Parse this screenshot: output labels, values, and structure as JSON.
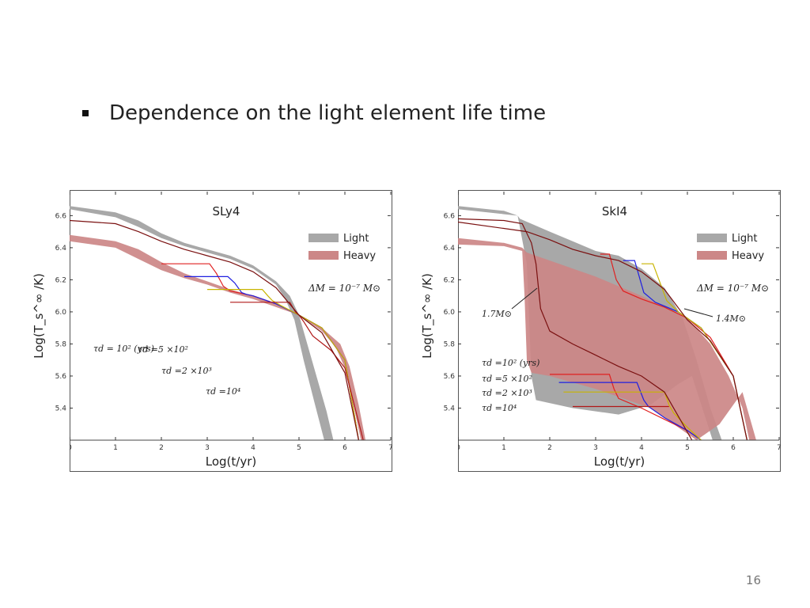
{
  "slide": {
    "heading": "Dependence on the light element life time",
    "page_number": "16"
  },
  "chart_data": [
    {
      "type": "line",
      "title": "SLy4",
      "xlabel": "Log(t/yr)",
      "ylabel": "Log(T_s^∞ /K)",
      "xlim": [
        0,
        7
      ],
      "ylim": [
        5.2,
        6.75
      ],
      "xticks": [
        "0",
        "1",
        "2",
        "3",
        "4",
        "5",
        "6",
        "7"
      ],
      "yticks": [
        "5.4",
        "5.6",
        "5.8",
        "6.0",
        "6.2",
        "6.4",
        "6.6"
      ],
      "legend": {
        "position": "top-right",
        "entries": [
          {
            "label": "Light",
            "color": "#a8a8a8"
          },
          {
            "label": "Heavy",
            "color": "#cc8787"
          }
        ]
      },
      "annotation": "ΔM = 10⁻⁷ M⊙",
      "bands": [
        {
          "name": "Light",
          "color": "#a8a8a8",
          "upper": [
            [
              0,
              6.66
            ],
            [
              1,
              6.62
            ],
            [
              1.5,
              6.57
            ],
            [
              2,
              6.49
            ],
            [
              2.5,
              6.43
            ],
            [
              3,
              6.39
            ],
            [
              3.5,
              6.35
            ],
            [
              4,
              6.29
            ],
            [
              4.5,
              6.19
            ],
            [
              4.8,
              6.1
            ],
            [
              5,
              5.98
            ],
            [
              5.3,
              5.68
            ],
            [
              5.6,
              5.38
            ],
            [
              5.75,
              5.2
            ]
          ],
          "lower": [
            [
              5.55,
              5.2
            ],
            [
              5.35,
              5.42
            ],
            [
              5.1,
              5.7
            ],
            [
              4.9,
              5.95
            ],
            [
              4.7,
              6.08
            ],
            [
              4.5,
              6.17
            ],
            [
              4,
              6.27
            ],
            [
              3.5,
              6.33
            ],
            [
              3,
              6.37
            ],
            [
              2.5,
              6.41
            ],
            [
              2,
              6.46
            ],
            [
              1.5,
              6.53
            ],
            [
              1,
              6.59
            ],
            [
              0,
              6.64
            ]
          ]
        },
        {
          "name": "Heavy",
          "color": "#cc8787",
          "upper": [
            [
              0,
              6.48
            ],
            [
              1,
              6.44
            ],
            [
              1.5,
              6.39
            ],
            [
              2,
              6.31
            ],
            [
              2.5,
              6.24
            ],
            [
              3,
              6.19
            ],
            [
              3.5,
              6.14
            ],
            [
              4,
              6.1
            ],
            [
              4.5,
              6.05
            ],
            [
              5,
              5.98
            ],
            [
              5.5,
              5.88
            ],
            [
              5.8,
              5.78
            ],
            [
              6,
              5.65
            ],
            [
              6.2,
              5.4
            ],
            [
              6.35,
              5.2
            ]
          ],
          "lower": [
            [
              6.45,
              5.2
            ],
            [
              6.3,
              5.42
            ],
            [
              6.1,
              5.66
            ],
            [
              5.9,
              5.8
            ],
            [
              5.5,
              5.9
            ],
            [
              5,
              5.98
            ],
            [
              4.5,
              6.03
            ],
            [
              4,
              6.08
            ],
            [
              3.5,
              6.12
            ],
            [
              3,
              6.17
            ],
            [
              2.5,
              6.21
            ],
            [
              2,
              6.26
            ],
            [
              1.5,
              6.33
            ],
            [
              1,
              6.4
            ],
            [
              0,
              6.44
            ]
          ]
        }
      ],
      "series": [
        {
          "label": "τd = 10² (yrs)",
          "color": "#e02020",
          "points": [
            [
              2,
              6.3
            ],
            [
              3.05,
              6.3
            ],
            [
              3.2,
              6.24
            ],
            [
              3.35,
              6.16
            ],
            [
              3.5,
              6.13
            ],
            [
              4,
              6.1
            ],
            [
              4.5,
              6.05
            ],
            [
              5,
              5.98
            ],
            [
              5.5,
              5.9
            ],
            [
              6,
              5.7
            ],
            [
              6.3,
              5.2
            ]
          ]
        },
        {
          "label": "τd =5 ×10²",
          "color": "#2020e0",
          "points": [
            [
              2.5,
              6.22
            ],
            [
              3.45,
              6.22
            ],
            [
              3.6,
              6.18
            ],
            [
              3.75,
              6.12
            ],
            [
              3.85,
              6.11
            ],
            [
              4,
              6.1
            ],
            [
              4.5,
              6.05
            ],
            [
              5,
              5.98
            ],
            [
              5.5,
              5.9
            ],
            [
              6,
              5.7
            ],
            [
              6.3,
              5.2
            ]
          ]
        },
        {
          "label": "τd =2 ×10³",
          "color": "#c8b400",
          "points": [
            [
              3,
              6.14
            ],
            [
              4.2,
              6.14
            ],
            [
              4.32,
              6.1
            ],
            [
              4.42,
              6.07
            ],
            [
              4.6,
              6.04
            ],
            [
              5,
              5.98
            ],
            [
              5.5,
              5.9
            ],
            [
              6,
              5.7
            ],
            [
              6.3,
              5.2
            ]
          ]
        },
        {
          "label": "τd =10⁴",
          "color": "#b01818",
          "points": [
            [
              3.5,
              6.06
            ],
            [
              4.8,
              6.06
            ],
            [
              4.92,
              6.0
            ],
            [
              5.0,
              5.98
            ],
            [
              5.1,
              5.94
            ],
            [
              5.3,
              5.85
            ],
            [
              5.7,
              5.76
            ],
            [
              6.0,
              5.65
            ],
            [
              6.4,
              5.2
            ]
          ]
        },
        {
          "label": "",
          "color": "#7a1010",
          "points": [
            [
              0,
              6.57
            ],
            [
              1,
              6.55
            ],
            [
              1.5,
              6.5
            ],
            [
              2,
              6.44
            ],
            [
              2.5,
              6.39
            ],
            [
              3,
              6.35
            ],
            [
              3.5,
              6.31
            ],
            [
              4,
              6.25
            ],
            [
              4.5,
              6.15
            ],
            [
              5,
              5.98
            ],
            [
              5.5,
              5.87
            ],
            [
              6,
              5.62
            ],
            [
              6.3,
              5.2
            ]
          ]
        }
      ]
    },
    {
      "type": "line",
      "title": "SkI4",
      "xlabel": "Log(t/yr)",
      "ylabel": "Log(T_s^∞ /K)",
      "xlim": [
        0,
        7
      ],
      "ylim": [
        5.2,
        6.75
      ],
      "xticks": [
        "0",
        "1",
        "2",
        "3",
        "4",
        "5",
        "6",
        "7"
      ],
      "yticks": [
        "5.4",
        "5.6",
        "5.8",
        "6.0",
        "6.2",
        "6.4",
        "6.6"
      ],
      "legend": {
        "position": "top-right",
        "entries": [
          {
            "label": "Light",
            "color": "#a8a8a8"
          },
          {
            "label": "Heavy",
            "color": "#cc8787"
          }
        ]
      },
      "annotation": "ΔM = 10⁻⁷ M⊙",
      "mass_labels": [
        "1.7M⊙",
        "1.4M⊙"
      ],
      "bands": [
        {
          "name": "Light",
          "color": "#a8a8a8",
          "upper": [
            [
              0,
              6.66
            ],
            [
              1,
              6.63
            ],
            [
              1.3,
              6.6
            ],
            [
              1.35,
              6.58
            ],
            [
              2,
              6.5
            ],
            [
              2.5,
              6.44
            ],
            [
              3,
              6.38
            ],
            [
              3.5,
              6.35
            ],
            [
              4,
              6.27
            ],
            [
              4.5,
              6.15
            ],
            [
              4.9,
              5.96
            ],
            [
              5.2,
              5.7
            ],
            [
              5.5,
              5.4
            ],
            [
              5.75,
              5.2
            ]
          ],
          "upper2": [],
          "lower": [
            [
              5.55,
              5.2
            ],
            [
              5.1,
              5.6
            ],
            [
              4.8,
              5.55
            ],
            [
              4.2,
              5.42
            ],
            [
              3.5,
              5.36
            ],
            [
              2.5,
              5.4
            ],
            [
              1.7,
              5.45
            ],
            [
              1.6,
              5.6
            ],
            [
              1.5,
              6.3
            ],
            [
              1.3,
              6.6
            ],
            [
              0,
              6.64
            ]
          ]
        },
        {
          "name": "Heavy",
          "color": "#cc8787",
          "upper": [
            [
              0,
              6.46
            ],
            [
              1,
              6.43
            ],
            [
              1.4,
              6.4
            ],
            [
              1.5,
              6.37
            ],
            [
              2,
              6.32
            ],
            [
              2.5,
              6.27
            ],
            [
              3,
              6.22
            ],
            [
              3.5,
              6.16
            ],
            [
              4,
              6.1
            ],
            [
              4.5,
              6.03
            ],
            [
              5,
              5.96
            ],
            [
              5.5,
              5.8
            ],
            [
              5.9,
              5.6
            ],
            [
              6.2,
              5.4
            ],
            [
              6.35,
              5.2
            ]
          ],
          "lower": [
            [
              6.5,
              5.2
            ],
            [
              6.2,
              5.5
            ],
            [
              5.7,
              5.3
            ],
            [
              5.2,
              5.2
            ],
            [
              4.2,
              5.4
            ],
            [
              3.5,
              5.47
            ],
            [
              3,
              5.52
            ],
            [
              2,
              5.6
            ],
            [
              1.6,
              5.62
            ],
            [
              1.5,
              5.7
            ],
            [
              1.45,
              6.1
            ],
            [
              1.4,
              6.38
            ],
            [
              1,
              6.41
            ],
            [
              0,
              6.42
            ]
          ]
        }
      ],
      "series": [
        {
          "label": "τd =10² (yrs)",
          "color": "#e02020",
          "points": [
            [
              2,
              5.61
            ],
            [
              3.3,
              5.61
            ],
            [
              3.4,
              5.52
            ],
            [
              3.5,
              5.46
            ],
            [
              4,
              5.4
            ],
            [
              4.5,
              5.33
            ],
            [
              5,
              5.26
            ],
            [
              5.3,
              5.2
            ]
          ]
        },
        {
          "label": "τd =5 ×10²",
          "color": "#2020e0",
          "points": [
            [
              2.2,
              5.56
            ],
            [
              3.9,
              5.56
            ],
            [
              4.05,
              5.45
            ],
            [
              4.15,
              5.41
            ],
            [
              4.5,
              5.34
            ],
            [
              5,
              5.26
            ],
            [
              5.3,
              5.2
            ]
          ]
        },
        {
          "label": "τd =2 ×10³",
          "color": "#c8b400",
          "points": [
            [
              2.3,
              5.5
            ],
            [
              4.5,
              5.5
            ],
            [
              4.6,
              5.42
            ],
            [
              4.7,
              5.37
            ],
            [
              5,
              5.28
            ],
            [
              5.3,
              5.2
            ]
          ]
        },
        {
          "label": "τd =10⁴",
          "color": "#b01818",
          "points": [
            [
              2.5,
              5.41
            ],
            [
              4.6,
              5.41
            ]
          ]
        },
        {
          "label": "",
          "color": "#e02020",
          "points": [
            [
              3.1,
              6.36
            ],
            [
              3.3,
              6.36
            ],
            [
              3.45,
              6.2
            ],
            [
              3.6,
              6.13
            ],
            [
              4,
              6.08
            ],
            [
              4.5,
              6.03
            ],
            [
              5,
              5.96
            ],
            [
              5.5,
              5.84
            ],
            [
              6,
              5.6
            ],
            [
              6.3,
              5.2
            ]
          ]
        },
        {
          "label": "",
          "color": "#2020e0",
          "points": [
            [
              3.6,
              6.32
            ],
            [
              3.85,
              6.32
            ],
            [
              4.05,
              6.12
            ],
            [
              4.3,
              6.06
            ],
            [
              4.8,
              6.0
            ],
            [
              5.3,
              5.9
            ],
            [
              6,
              5.6
            ],
            [
              6.3,
              5.2
            ]
          ]
        },
        {
          "label": "",
          "color": "#c8b400",
          "points": [
            [
              4.0,
              6.3
            ],
            [
              4.25,
              6.3
            ],
            [
              4.55,
              6.07
            ],
            [
              4.8,
              6.0
            ],
            [
              5.3,
              5.9
            ],
            [
              6,
              5.6
            ],
            [
              6.3,
              5.2
            ]
          ]
        },
        {
          "label": "",
          "color": "#7a1010",
          "points": [
            [
              0,
              6.58
            ],
            [
              1,
              6.57
            ],
            [
              1.4,
              6.55
            ],
            [
              1.6,
              6.43
            ],
            [
              1.7,
              6.3
            ],
            [
              1.8,
              6.02
            ],
            [
              2,
              5.88
            ],
            [
              2.5,
              5.8
            ],
            [
              3,
              5.73
            ],
            [
              3.5,
              5.66
            ],
            [
              4,
              5.6
            ],
            [
              4.5,
              5.5
            ],
            [
              4.8,
              5.35
            ],
            [
              5.0,
              5.25
            ],
            [
              5.1,
              5.2
            ]
          ]
        },
        {
          "label": "",
          "color": "#7a1010",
          "points": [
            [
              0,
              6.56
            ],
            [
              1.5,
              6.5
            ],
            [
              2,
              6.45
            ],
            [
              2.5,
              6.39
            ],
            [
              3,
              6.35
            ],
            [
              3.5,
              6.32
            ],
            [
              4,
              6.25
            ],
            [
              4.5,
              6.14
            ],
            [
              5,
              5.95
            ],
            [
              5.5,
              5.82
            ],
            [
              6,
              5.6
            ],
            [
              6.3,
              5.2
            ]
          ]
        }
      ]
    }
  ]
}
